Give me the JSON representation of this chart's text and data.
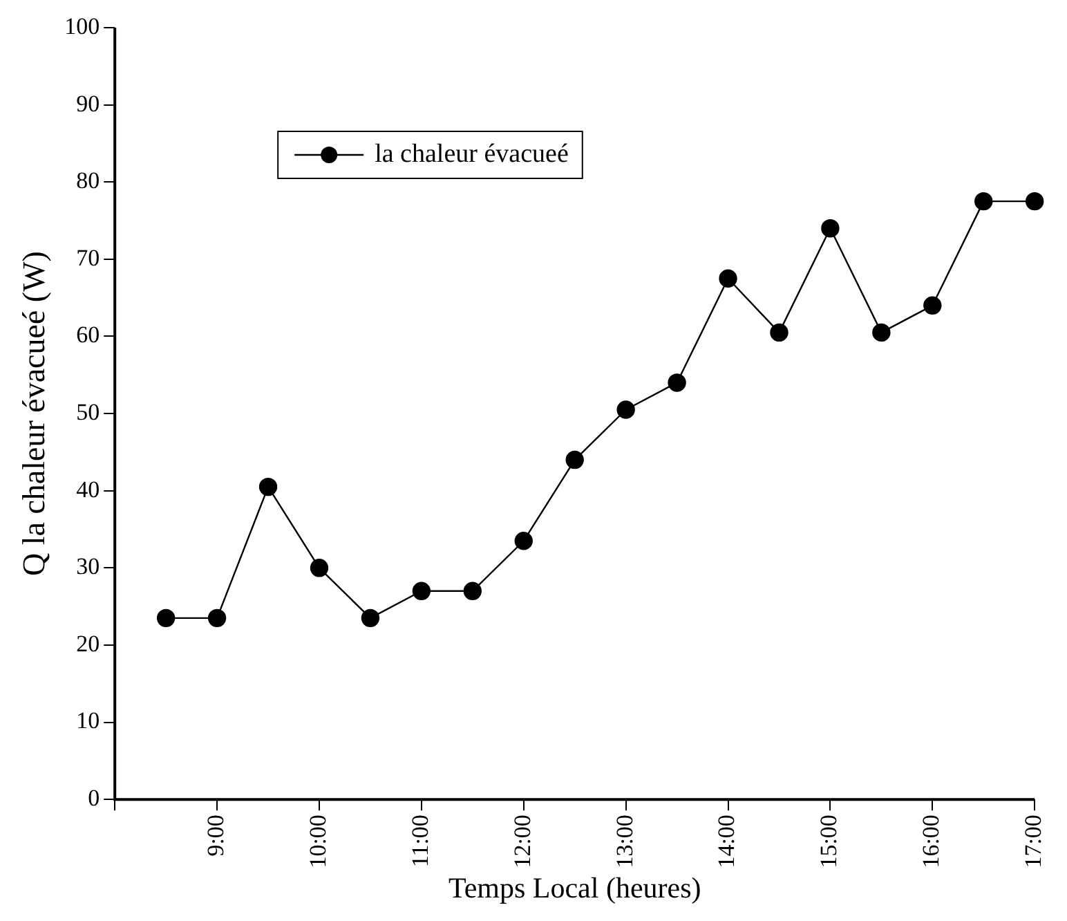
{
  "chart_data": {
    "type": "line",
    "xlabel": "Temps Local (heures)",
    "ylabel": "Q la chaleur évacueé (W)",
    "x": [
      8.5,
      9,
      9.5,
      10,
      10.5,
      11,
      11.5,
      12,
      12.5,
      13,
      13.5,
      14,
      14.5,
      15,
      15.5,
      16,
      16.5,
      17
    ],
    "series": [
      {
        "name": "la chaleur évacueé",
        "color": "#000000",
        "values": [
          23.5,
          23.5,
          40.5,
          30,
          23.5,
          27,
          27,
          33.5,
          44,
          50.5,
          54,
          67.5,
          60.5,
          74,
          60.5,
          64,
          77.5,
          77.5
        ]
      }
    ],
    "xlim": [
      8,
      17
    ],
    "xticks": [
      {
        "value": 8,
        "label": null
      },
      {
        "value": 9,
        "label": "9:00"
      },
      {
        "value": 10,
        "label": "10:00"
      },
      {
        "value": 11,
        "label": "11:00"
      },
      {
        "value": 12,
        "label": "12:00"
      },
      {
        "value": 13,
        "label": "13:00"
      },
      {
        "value": 14,
        "label": "14:00"
      },
      {
        "value": 15,
        "label": "15:00"
      },
      {
        "value": 16,
        "label": "16:00"
      },
      {
        "value": 17,
        "label": "17:00"
      }
    ],
    "ylim": [
      0,
      100
    ],
    "yticks": [
      0,
      10,
      20,
      30,
      40,
      50,
      60,
      70,
      80,
      90,
      100
    ],
    "grid": false,
    "legend": "top left",
    "marker": "circle",
    "line_style": "solid"
  }
}
